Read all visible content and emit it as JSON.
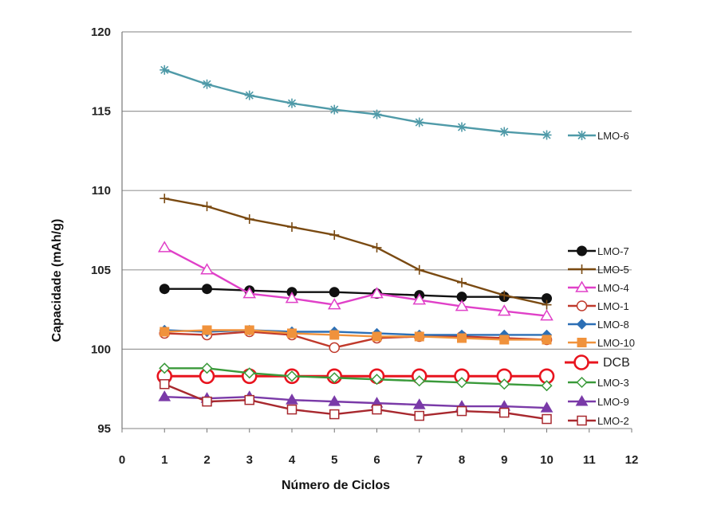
{
  "chart_data": {
    "type": "line",
    "xlabel": "Número de Ciclos",
    "ylabel": "Capacidade (mAh/g)",
    "xlim": [
      0,
      12
    ],
    "ylim": [
      95,
      120
    ],
    "xticks": [
      "0",
      "1",
      "2",
      "3",
      "4",
      "5",
      "6",
      "7",
      "8",
      "9",
      "10",
      "11",
      "12"
    ],
    "yticks": [
      "95",
      "100",
      "105",
      "110",
      "115",
      "120"
    ],
    "grid": "horizontal",
    "legend_position": "right",
    "x": [
      1,
      2,
      3,
      4,
      5,
      6,
      7,
      8,
      9,
      10
    ],
    "series": [
      {
        "name": "LMO-6",
        "color": "#4f9aa8",
        "marker": "star",
        "values": [
          117.6,
          116.7,
          116.0,
          115.5,
          115.1,
          114.8,
          114.3,
          114.0,
          113.7,
          113.5
        ]
      },
      {
        "name": "LMO-7",
        "color": "#111111",
        "marker": "circle-filled",
        "values": [
          103.8,
          103.8,
          103.7,
          103.6,
          103.6,
          103.5,
          103.4,
          103.3,
          103.3,
          103.2
        ]
      },
      {
        "name": "LMO-5",
        "color": "#7a4a12",
        "marker": "plus",
        "values": [
          109.5,
          109.0,
          108.2,
          107.7,
          107.2,
          106.4,
          105.0,
          104.2,
          103.4,
          102.8
        ]
      },
      {
        "name": "LMO-4",
        "color": "#e040c8",
        "marker": "triangle-open",
        "values": [
          106.4,
          105.0,
          103.5,
          103.2,
          102.8,
          103.5,
          103.1,
          102.7,
          102.4,
          102.1
        ]
      },
      {
        "name": "LMO-1",
        "color": "#c0392b",
        "marker": "circle-open",
        "values": [
          101.0,
          100.9,
          101.1,
          100.9,
          100.1,
          100.7,
          100.8,
          100.8,
          100.7,
          100.6
        ]
      },
      {
        "name": "LMO-8",
        "color": "#2c6fb5",
        "marker": "diamond-filled",
        "values": [
          101.2,
          101.1,
          101.2,
          101.1,
          101.1,
          101.0,
          100.9,
          100.9,
          100.9,
          100.9
        ]
      },
      {
        "name": "LMO-10",
        "color": "#f0923c",
        "marker": "square-filled",
        "values": [
          101.1,
          101.2,
          101.2,
          101.0,
          100.9,
          100.8,
          100.8,
          100.7,
          100.6,
          100.6
        ]
      },
      {
        "name": "DCB",
        "color": "#e8141e",
        "marker": "circle-open-big",
        "values": [
          98.3,
          98.3,
          98.3,
          98.3,
          98.3,
          98.3,
          98.3,
          98.3,
          98.3,
          98.3
        ]
      },
      {
        "name": "LMO-3",
        "color": "#3a9a3a",
        "marker": "diamond-open",
        "values": [
          98.8,
          98.8,
          98.5,
          98.3,
          98.2,
          98.1,
          98.0,
          97.9,
          97.8,
          97.7
        ]
      },
      {
        "name": "LMO-9",
        "color": "#7a3aa8",
        "marker": "triangle-filled",
        "values": [
          97.0,
          96.9,
          97.0,
          96.8,
          96.7,
          96.6,
          96.5,
          96.4,
          96.4,
          96.3
        ]
      },
      {
        "name": "LMO-2",
        "color": "#a8282e",
        "marker": "square-open",
        "values": [
          97.8,
          96.7,
          96.8,
          96.2,
          95.9,
          96.2,
          95.8,
          96.1,
          96.0,
          95.6
        ]
      }
    ]
  }
}
